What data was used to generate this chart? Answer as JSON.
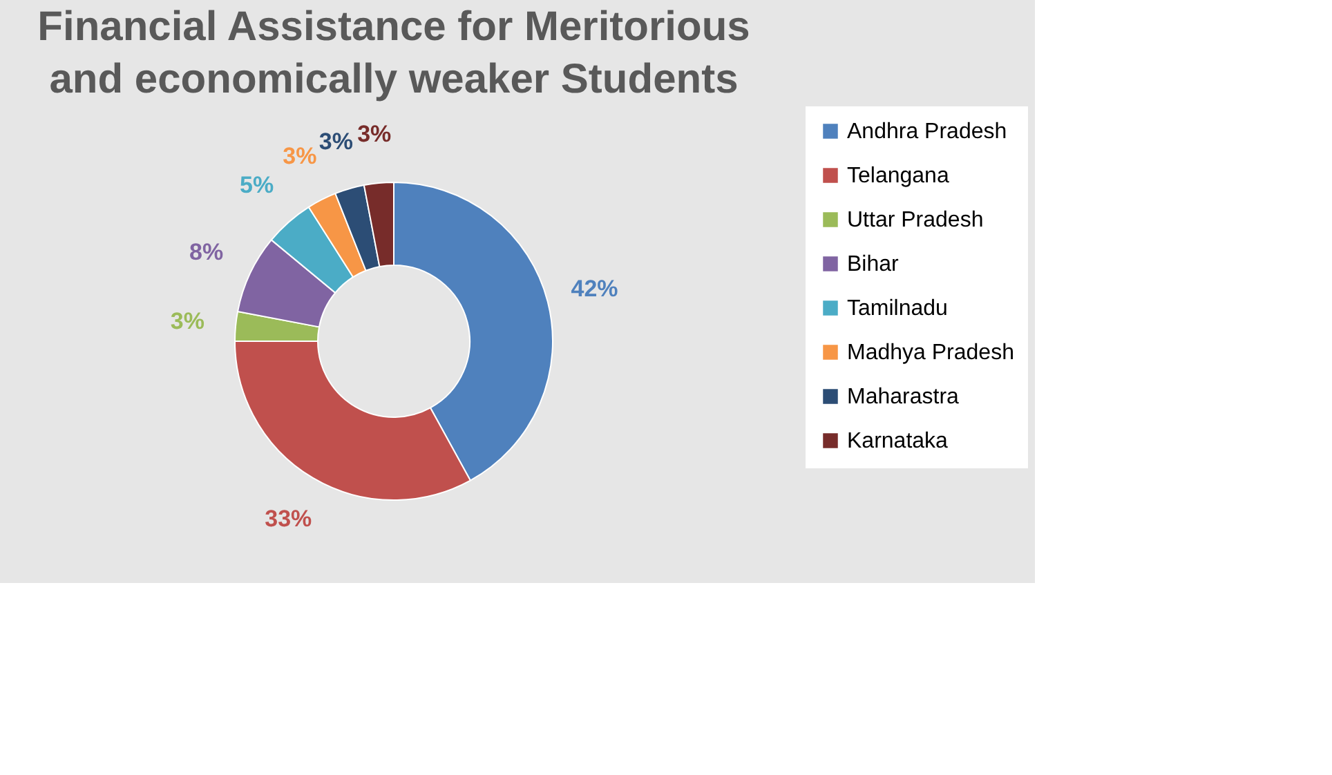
{
  "chart_data": {
    "type": "donut",
    "title": "Financial Assistance for Meritorious and economically weaker Students",
    "categories": [
      "Andhra Pradesh",
      "Telangana",
      "Uttar Pradesh",
      "Bihar",
      "Tamilnadu",
      "Madhya Pradesh",
      "Maharastra",
      "Karnataka"
    ],
    "values": [
      42,
      33,
      3,
      8,
      5,
      3,
      3,
      3
    ],
    "value_labels": [
      "42%",
      "33%",
      "3%",
      "8%",
      "5%",
      "3%",
      "3%",
      "3%"
    ],
    "colors": [
      "#4f81bd",
      "#c0504d",
      "#9bbb59",
      "#8064a2",
      "#4bacc6",
      "#f79646",
      "#2c4d75",
      "#772c2a"
    ],
    "legend": "right"
  }
}
